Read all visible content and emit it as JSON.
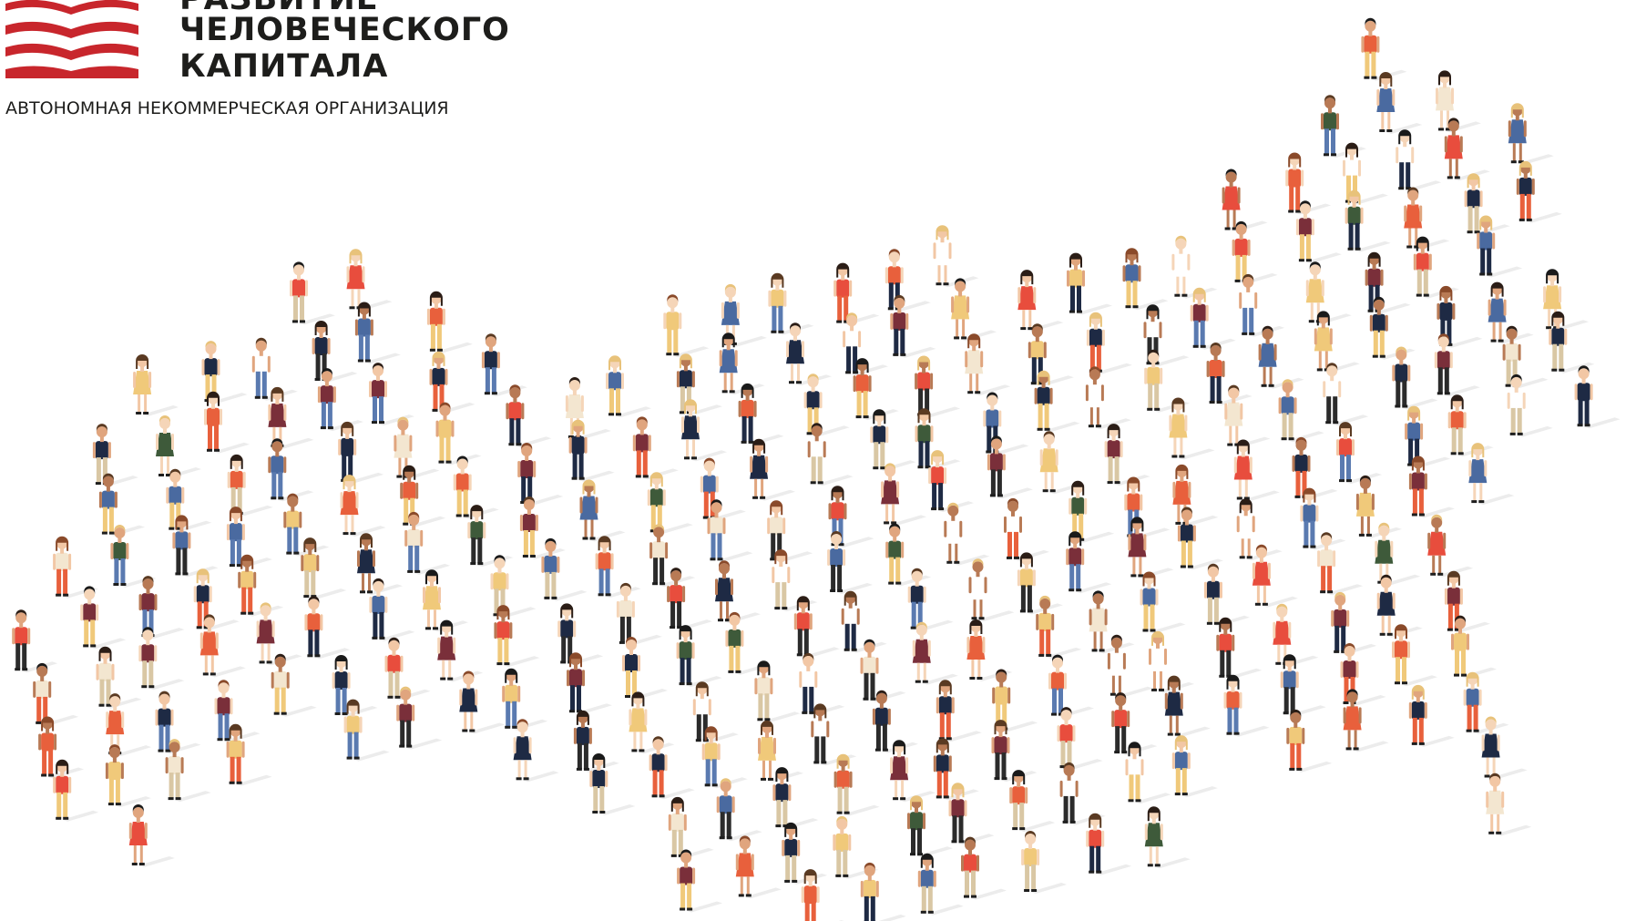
{
  "header": {
    "title_lines": [
      "РАЗВИТИЕ",
      "ЧЕЛОВЕЧЕСКОГО",
      "КАПИТАЛА"
    ],
    "subtitle": "АВТОНОМНАЯ НЕКОММЕРЧЕСКАЯ ОРГАНИЗАЦИЯ"
  }
}
